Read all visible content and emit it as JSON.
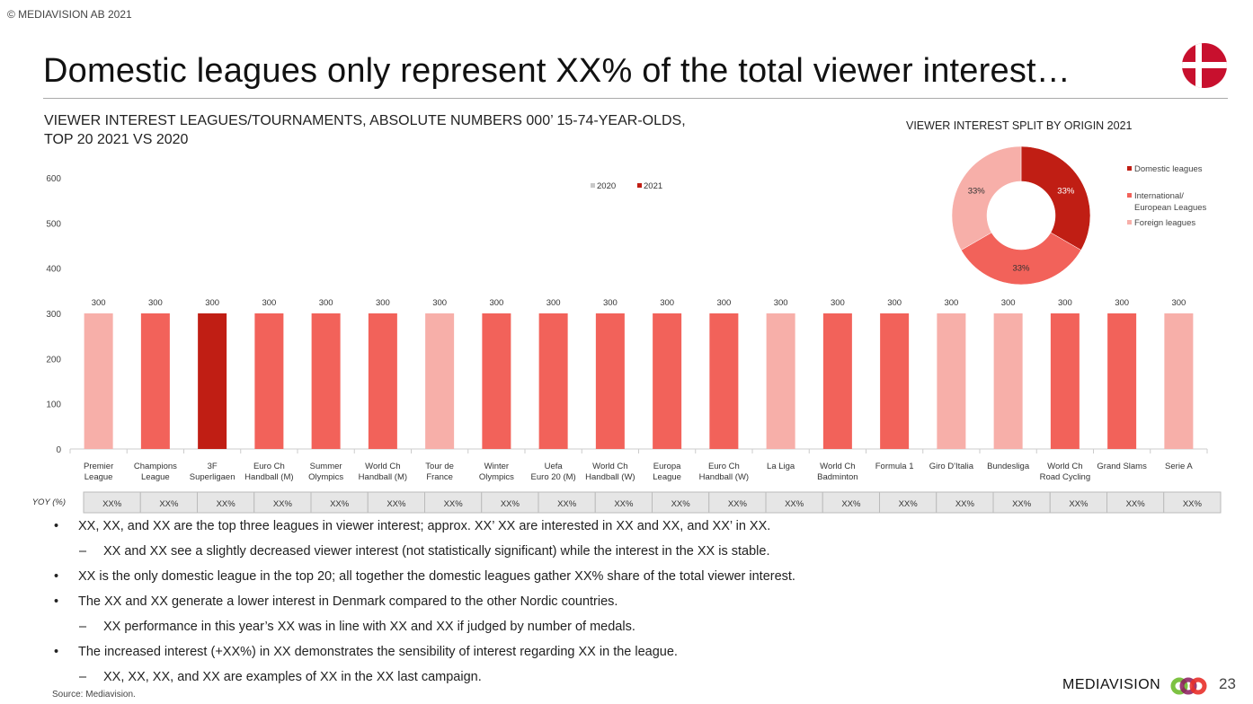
{
  "copyright": "© MEDIAVISION AB 2021",
  "title": "Domestic leagues only represent XX% of the total viewer interest…",
  "colors": {
    "domestic": "#C01E14",
    "international": "#F2625A",
    "foreign": "#F7AFA9",
    "y2020": "#C8C8C8",
    "y2021": "#C01E14"
  },
  "chart_data": [
    {
      "type": "bar",
      "title_lines": [
        "VIEWER INTEREST LEAGUES/TOURNAMENTS, ABSOLUTE NUMBERS 000’ 15-74-YEAR-OLDS,",
        "TOP 20 2021 VS 2020"
      ],
      "ylim": [
        0,
        600
      ],
      "yticks": [
        0,
        100,
        200,
        300,
        400,
        500,
        600
      ],
      "legend": [
        "2020",
        "2021"
      ],
      "legend_position": "top-center",
      "categories": [
        [
          "Premier",
          "League"
        ],
        [
          "Champions",
          "League"
        ],
        [
          "3F",
          "Superligaen"
        ],
        [
          "Euro Ch",
          "Handball (M)"
        ],
        [
          "Summer",
          "Olympics"
        ],
        [
          "World Ch",
          "Handball (M)"
        ],
        [
          "Tour de",
          "France"
        ],
        [
          "Winter",
          "Olympics"
        ],
        [
          "Uefa",
          "Euro 20 (M)"
        ],
        [
          "World Ch",
          "Handball (W)"
        ],
        [
          "Europa",
          "League"
        ],
        [
          "Euro Ch",
          "Handball (W)"
        ],
        [
          "La Liga"
        ],
        [
          "World Ch",
          "Badminton"
        ],
        [
          "Formula 1"
        ],
        [
          "Giro D'Italia"
        ],
        [
          "Bundesliga"
        ],
        [
          "World Ch",
          "Road Cycling"
        ],
        [
          "Grand Slams"
        ],
        [
          "Serie A"
        ]
      ],
      "origin": [
        "foreign",
        "international",
        "domestic",
        "international",
        "international",
        "international",
        "foreign",
        "international",
        "international",
        "international",
        "international",
        "international",
        "foreign",
        "international",
        "international",
        "foreign",
        "foreign",
        "international",
        "international",
        "foreign"
      ],
      "values": [
        300,
        300,
        300,
        300,
        300,
        300,
        300,
        300,
        300,
        300,
        300,
        300,
        300,
        300,
        300,
        300,
        300,
        300,
        300,
        300
      ],
      "yoy_label": "YOY (%)",
      "yoy": [
        "XX%",
        "XX%",
        "XX%",
        "XX%",
        "XX%",
        "XX%",
        "XX%",
        "XX%",
        "XX%",
        "XX%",
        "XX%",
        "XX%",
        "XX%",
        "XX%",
        "XX%",
        "XX%",
        "XX%",
        "XX%",
        "XX%",
        "XX%"
      ]
    },
    {
      "type": "pie",
      "title": "VIEWER INTEREST SPLIT BY ORIGIN 2021",
      "legend_position": "right",
      "slices": [
        {
          "label": "Domestic leagues",
          "label_lines": [
            "Domestic leagues"
          ],
          "value": 33,
          "text": "33%",
          "key": "domestic"
        },
        {
          "label": "International/ European Leagues",
          "label_lines": [
            "International/",
            "European Leagues"
          ],
          "value": 33,
          "text": "33%",
          "key": "international"
        },
        {
          "label": "Foreign leagues",
          "label_lines": [
            "Foreign leagues"
          ],
          "value": 33,
          "text": "33%",
          "key": "foreign"
        }
      ]
    }
  ],
  "bullets": [
    {
      "level": 1,
      "text": "XX, XX, and XX are the top three leagues in viewer interest; approx. XX’ XX are interested in XX and XX, and XX’ in XX."
    },
    {
      "level": 2,
      "text": "XX and XX see a slightly decreased viewer interest (not statistically significant) while the interest in the XX is stable."
    },
    {
      "level": 1,
      "text": "XX is the only domestic league in the top 20; all together the domestic leagues gather XX% share of the total viewer interest."
    },
    {
      "level": 1,
      "text": "The XX and XX generate a lower interest in Denmark compared to the other Nordic countries."
    },
    {
      "level": 2,
      "text": "XX performance in this year’s XX was in line with XX and XX if judged by number of medals."
    },
    {
      "level": 1,
      "text": "The increased interest (+XX%) in XX demonstrates the sensibility of interest regarding XX in the league."
    },
    {
      "level": 2,
      "text": "XX, XX, XX, and XX are examples of XX in the XX last campaign."
    }
  ],
  "source": "Source: Mediavision.",
  "brand": "MEDIAVISION",
  "page_number": "23"
}
